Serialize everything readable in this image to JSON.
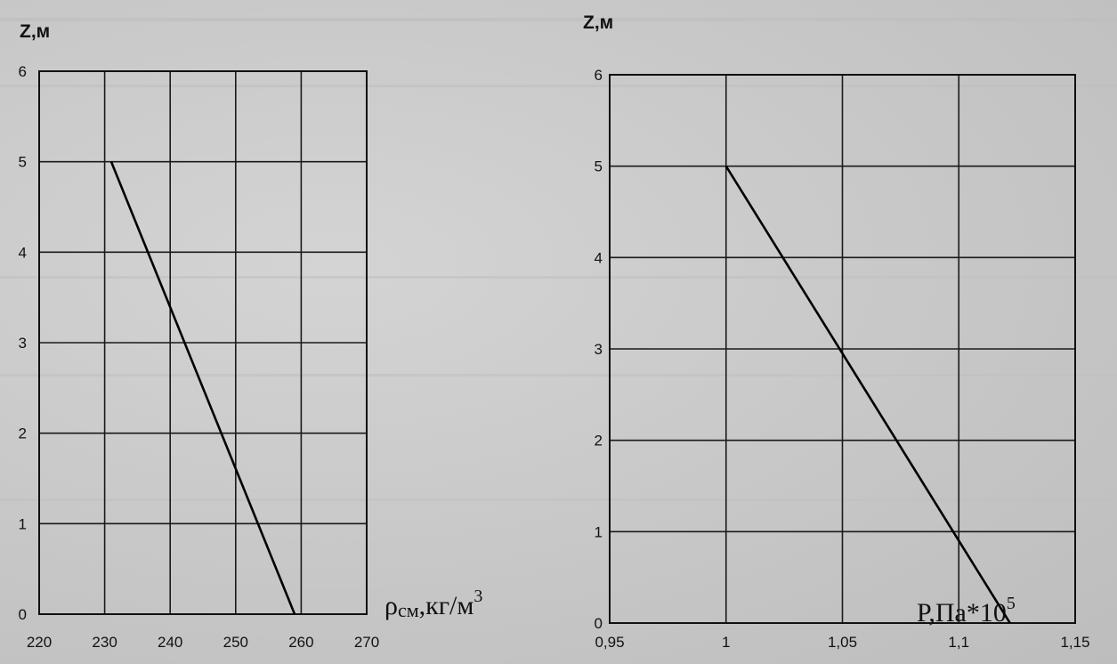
{
  "chart_data": [
    {
      "type": "line",
      "title": "",
      "ylabel": "Z,м",
      "xlabel_main": "ρ",
      "xlabel_sub": "см",
      "xlabel_unit": ",кг/м",
      "xlabel_sup": "3",
      "xlim": [
        220,
        270
      ],
      "ylim": [
        0,
        6
      ],
      "x_ticks": [
        220,
        230,
        240,
        250,
        260,
        270
      ],
      "x_tick_labels": [
        "220",
        "230",
        "240",
        "250",
        "260",
        "270"
      ],
      "y_ticks": [
        0,
        1,
        2,
        3,
        4,
        5,
        6
      ],
      "y_tick_labels": [
        "0",
        "1",
        "2",
        "3",
        "4",
        "5",
        "6"
      ],
      "grid": true,
      "series": [
        {
          "x": [
            231,
            259
          ],
          "y": [
            5,
            0
          ]
        }
      ]
    },
    {
      "type": "line",
      "title": "",
      "ylabel": "Z,м",
      "xlabel_main": "P,Па*10",
      "xlabel_sup": "5",
      "xlim": [
        0.95,
        1.15
      ],
      "ylim": [
        0,
        6
      ],
      "x_ticks": [
        0.95,
        1.0,
        1.05,
        1.1,
        1.15
      ],
      "x_tick_labels": [
        "0,95",
        "1",
        "1,05",
        "1,1",
        "1,15"
      ],
      "y_ticks": [
        0,
        1,
        2,
        3,
        4,
        5,
        6
      ],
      "y_tick_labels": [
        "0",
        "1",
        "2",
        "3",
        "4",
        "5",
        "6"
      ],
      "grid": true,
      "series": [
        {
          "x": [
            1.0,
            1.122
          ],
          "y": [
            5,
            0
          ]
        }
      ]
    }
  ]
}
